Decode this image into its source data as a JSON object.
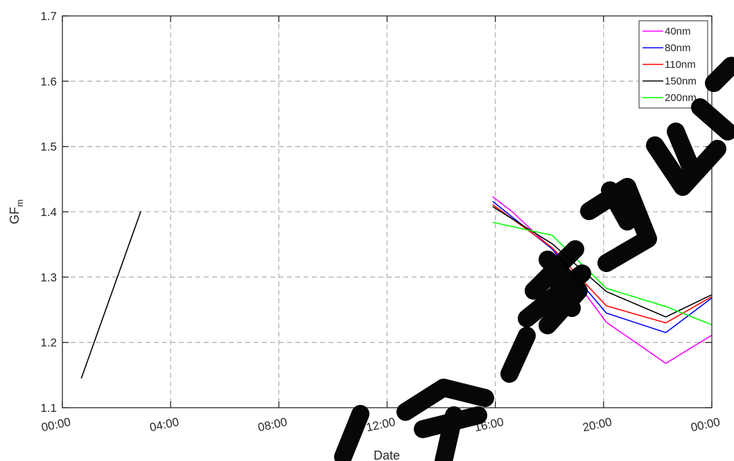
{
  "chart_data": {
    "type": "line",
    "title": "",
    "xlabel": "Date",
    "ylabel": "GF",
    "ylabel_subscript": "m",
    "x_tick_labels": [
      "00:00",
      "04:00",
      "08:00",
      "12:00",
      "16:00",
      "20:00",
      "00:00"
    ],
    "x_range_hours": [
      0,
      24
    ],
    "ylim": [
      1.1,
      1.7
    ],
    "y_ticks": [
      1.1,
      1.2,
      1.3,
      1.4,
      1.5,
      1.6,
      1.7
    ],
    "grid": true,
    "legend_position": "top-right",
    "series": [
      {
        "name": "40nm",
        "color": "#ff00ff",
        "x": [
          15.9,
          16.6,
          18.1,
          20.1,
          22.3,
          24.0
        ],
        "y": [
          1.423,
          1.401,
          1.343,
          1.231,
          1.168,
          1.211
        ]
      },
      {
        "name": "80nm",
        "color": "#0000ff",
        "x": [
          15.9,
          18.1,
          20.1,
          22.3,
          24.0
        ],
        "y": [
          1.416,
          1.343,
          1.245,
          1.215,
          1.268
        ]
      },
      {
        "name": "110nm",
        "color": "#ff0000",
        "x": [
          15.9,
          18.1,
          20.1,
          22.3,
          24.0
        ],
        "y": [
          1.411,
          1.345,
          1.256,
          1.23,
          1.27
        ]
      },
      {
        "name": "150nm",
        "color": "#000000",
        "x": [
          0.7,
          2.9,
          null,
          15.9,
          18.1,
          20.1,
          22.3,
          24.0
        ],
        "y": [
          1.145,
          1.401,
          null,
          1.408,
          1.351,
          1.278,
          1.239,
          1.273
        ]
      },
      {
        "name": "200nm",
        "color": "#00ff00",
        "x": [
          15.9,
          18.1,
          20.1,
          22.3,
          24.0
        ],
        "y": [
          1.384,
          1.364,
          1.283,
          1.255,
          1.227
        ]
      }
    ]
  }
}
